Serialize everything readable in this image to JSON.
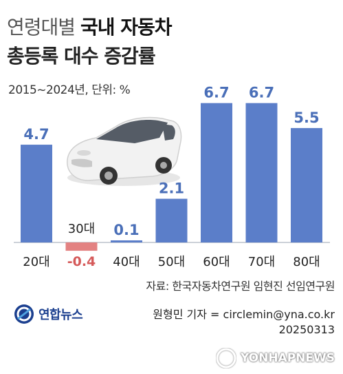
{
  "title": {
    "line1_light": "연령대별",
    "line1_bold": "국내 자동차",
    "line2": "총등록 대수 증감률"
  },
  "subtitle": "2015~2024년, 단위: %",
  "chart_data": {
    "type": "bar",
    "categories": [
      "20대",
      "30대",
      "40대",
      "50대",
      "60대",
      "70대",
      "80대"
    ],
    "values": [
      4.7,
      -0.4,
      0.1,
      2.1,
      6.7,
      6.7,
      5.5
    ],
    "value_labels": [
      "4.7",
      "-0.4",
      "0.1",
      "2.1",
      "6.7",
      "6.7",
      "5.5"
    ],
    "positive_color": "#5b7ec9",
    "negative_color": "#e38282",
    "positive_label_color": "#4a6fb8",
    "negative_label_color": "#d55a5a",
    "ylim": [
      -0.6,
      7.2
    ]
  },
  "source": "자료: 한국자동차연구원 임현진 선임연구원",
  "credit": {
    "reporter": "원형민 기자 = circlemin@yna.co.kr",
    "date": "20250313"
  },
  "logo_text": "연합뉴스",
  "watermark": "YONHAPNEWS",
  "icons": [
    "car-illustration",
    "yonhap-logo-icon",
    "yonhap-watermark-icon"
  ]
}
